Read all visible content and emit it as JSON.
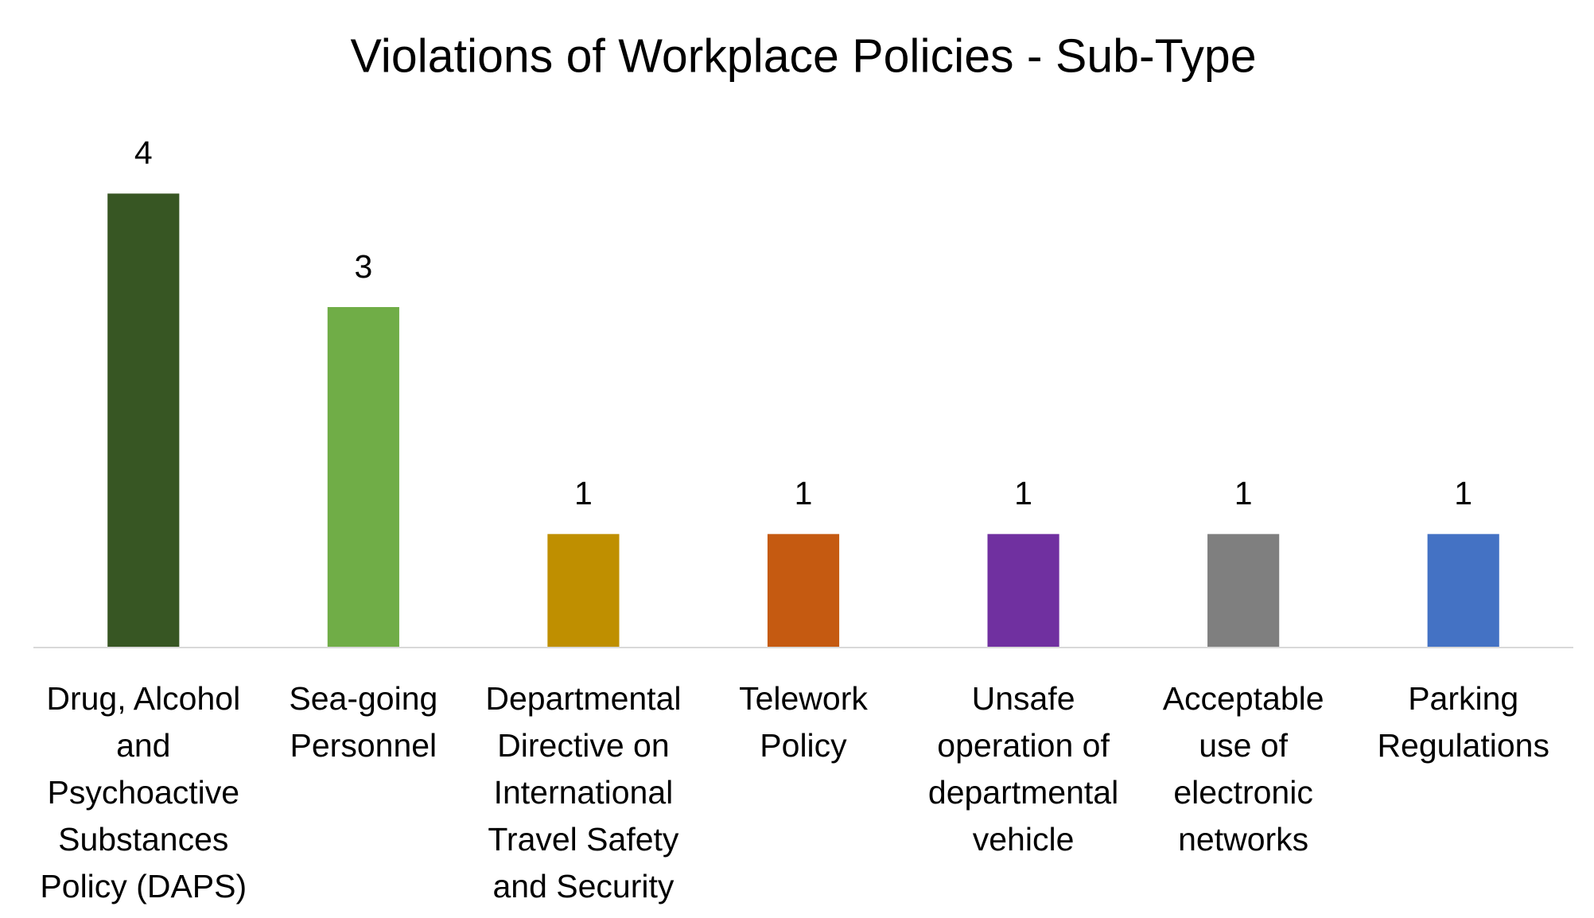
{
  "chart_data": {
    "type": "bar",
    "title": "Violations of Workplace Policies - Sub-Type",
    "categories": [
      "Drug, Alcohol and Psychoactive Substances Policy (DAPS)",
      "Sea-going Personnel",
      "Departmental Directive on International Travel Safety and Security",
      "Telework Policy",
      "Unsafe operation of departmental vehicle",
      "Acceptable use of electronic networks",
      "Parking Regulations"
    ],
    "values": [
      4,
      3,
      1,
      1,
      1,
      1,
      1
    ],
    "colors": [
      "#375623",
      "#70ad47",
      "#bf8f00",
      "#c55a11",
      "#7030a0",
      "#7f7f7f",
      "#4472c4"
    ],
    "ylim": [
      0,
      4.5
    ],
    "grid": false
  }
}
